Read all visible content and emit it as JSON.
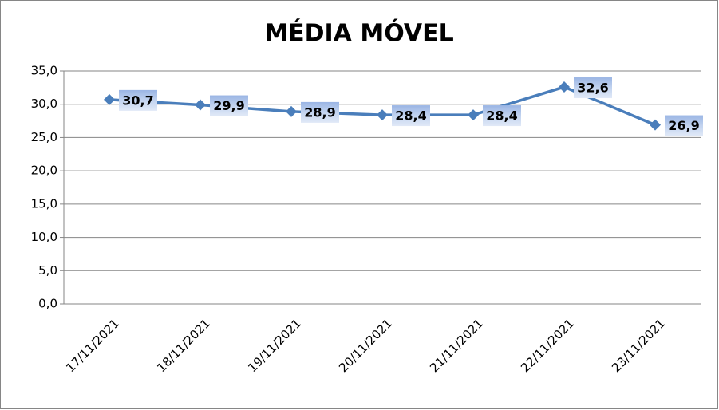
{
  "chart_data": {
    "type": "line",
    "title": "MÉDIA MÓVEL",
    "categories": [
      "17/11/2021",
      "18/11/2021",
      "19/11/2021",
      "20/11/2021",
      "21/11/2021",
      "22/11/2021",
      "23/11/2021"
    ],
    "series": [
      {
        "color": "#4a7ebb",
        "values": [
          30.7,
          29.9,
          28.9,
          28.4,
          28.4,
          32.6,
          26.9
        ],
        "value_labels": [
          "30,7",
          "29,9",
          "28,9",
          "28,4",
          "28,4",
          "32,6",
          "26,9"
        ]
      }
    ],
    "ylim": [
      0,
      35
    ],
    "yticks": [
      {
        "value": 0,
        "label": "0,0"
      },
      {
        "value": 5,
        "label": "5,0"
      },
      {
        "value": 10,
        "label": "10,0"
      },
      {
        "value": 15,
        "label": "15,0"
      },
      {
        "value": 20,
        "label": "20,0"
      },
      {
        "value": 25,
        "label": "25,0"
      },
      {
        "value": 30,
        "label": "30,0"
      },
      {
        "value": 35,
        "label": "35,0"
      }
    ],
    "grid": true
  }
}
